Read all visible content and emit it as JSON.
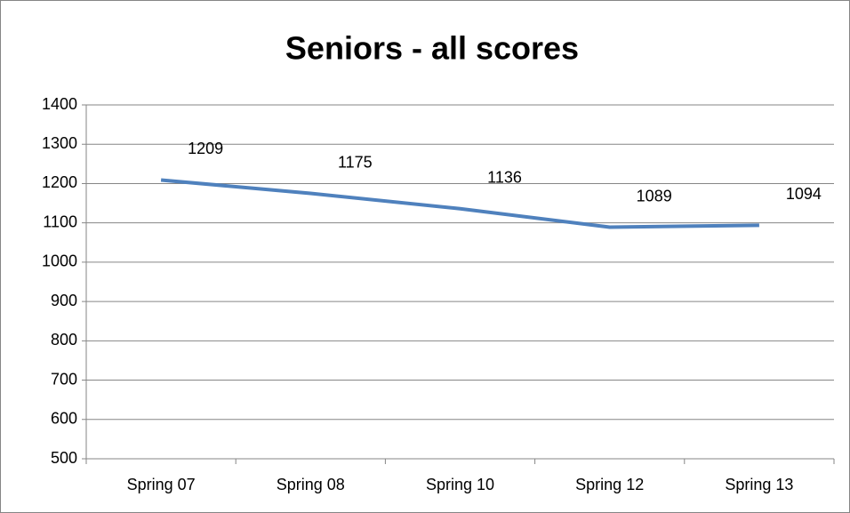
{
  "chart_data": {
    "type": "line",
    "title": "Seniors - all scores",
    "categories": [
      "Spring 07",
      "Spring 08",
      "Spring 10",
      "Spring 12",
      "Spring 13"
    ],
    "series": [
      {
        "name": "Seniors",
        "color": "#4f81bd",
        "values": [
          1209,
          1175,
          1136,
          1089,
          1094
        ]
      }
    ],
    "ylim": [
      500,
      1400
    ],
    "yticks": [
      500,
      600,
      700,
      800,
      900,
      1000,
      1100,
      1200,
      1300,
      1400
    ],
    "grid": true
  }
}
